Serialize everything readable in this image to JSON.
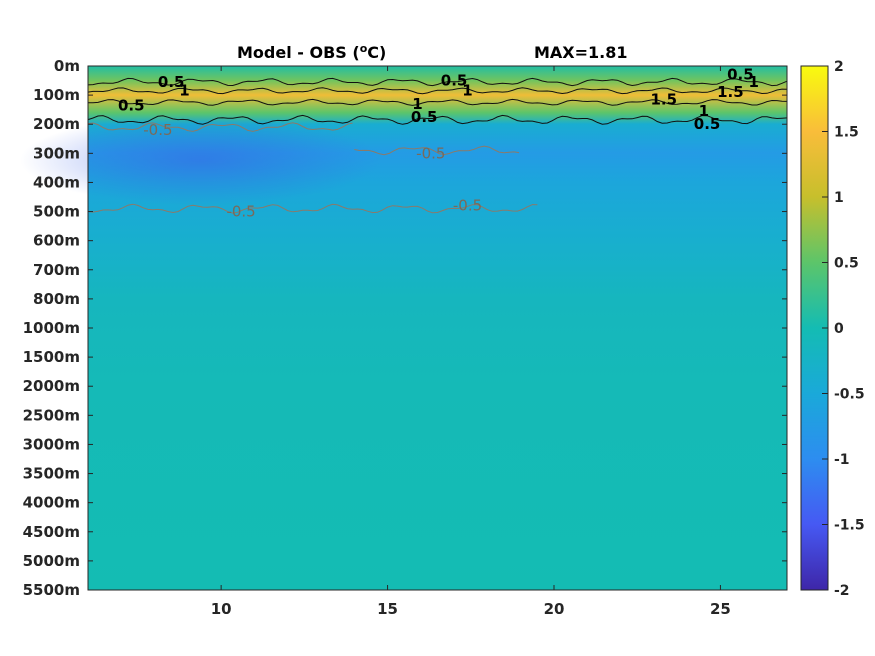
{
  "chart_data": {
    "type": "heatmap",
    "title_left": "Model - OBS (",
    "title_unit_sup": "o",
    "title_unit_tail": "C)",
    "title_right": "MAX=1.81",
    "xlabel": "",
    "ylabel": "",
    "x_range": [
      6,
      27
    ],
    "x_ticks": [
      10,
      15,
      20,
      25
    ],
    "y_tick_labels": [
      "0m",
      "100m",
      "200m",
      "300m",
      "400m",
      "500m",
      "600m",
      "700m",
      "800m",
      "1000m",
      "1500m",
      "2000m",
      "2500m",
      "3000m",
      "3500m",
      "4000m",
      "4500m",
      "5000m",
      "5500m"
    ],
    "colorbar": {
      "range": [
        -2,
        2
      ],
      "ticks": [
        "2",
        "1.5",
        "1",
        "0.5",
        "0",
        "-0.5",
        "-1",
        "-1.5",
        "-2"
      ]
    },
    "colors": {
      "deep_blue": "#3b5fe8",
      "mid_blue": "#2d93e0",
      "teal": "#14aec4",
      "green": "#a0c83a",
      "orange": "#f7ba3b",
      "yellow": "#f9fb0e",
      "navy": "#3e26a8"
    },
    "depth_profile": [
      {
        "level": 0,
        "value": 0.1
      },
      {
        "level": 0.5,
        "value": 0.6
      },
      {
        "level": 1,
        "value": 1.4
      },
      {
        "level": 1.6,
        "value": 0.5
      },
      {
        "level": 2,
        "value": -0.4
      },
      {
        "level": 3,
        "value": -0.75
      },
      {
        "level": 4,
        "value": -0.55
      },
      {
        "level": 6,
        "value": -0.35
      },
      {
        "level": 8,
        "value": -0.15
      },
      {
        "level": 11,
        "value": -0.05
      },
      {
        "level": 18,
        "value": 0.0
      }
    ],
    "contour_labels": [
      {
        "text": "0.5",
        "x": 8.5,
        "level": 0.55,
        "sign": "pos"
      },
      {
        "text": "1",
        "x": 8.9,
        "level": 0.85,
        "sign": "pos"
      },
      {
        "text": "0.5",
        "x": 7.3,
        "level": 1.35,
        "sign": "pos"
      },
      {
        "text": "0.5",
        "x": 17.0,
        "level": 0.5,
        "sign": "pos"
      },
      {
        "text": "1",
        "x": 17.4,
        "level": 0.85,
        "sign": "pos"
      },
      {
        "text": "1",
        "x": 15.9,
        "level": 1.3,
        "sign": "pos"
      },
      {
        "text": "0.5",
        "x": 16.1,
        "level": 1.75,
        "sign": "pos"
      },
      {
        "text": "0.5",
        "x": 25.6,
        "level": 0.3,
        "sign": "pos"
      },
      {
        "text": "1",
        "x": 26.0,
        "level": 0.55,
        "sign": "pos"
      },
      {
        "text": "1.5",
        "x": 25.3,
        "level": 0.9,
        "sign": "pos"
      },
      {
        "text": "1.5",
        "x": 23.3,
        "level": 1.15,
        "sign": "pos"
      },
      {
        "text": "1",
        "x": 24.5,
        "level": 1.55,
        "sign": "pos"
      },
      {
        "text": "0.5",
        "x": 24.6,
        "level": 2.0,
        "sign": "pos"
      },
      {
        "text": "-0.5",
        "x": 8.1,
        "level": 2.2,
        "sign": "neg"
      },
      {
        "text": "-0.5",
        "x": 16.3,
        "level": 3.0,
        "sign": "neg"
      },
      {
        "text": "-0.5",
        "x": 10.6,
        "level": 5.0,
        "sign": "neg"
      },
      {
        "text": "-0.5",
        "x": 17.4,
        "level": 4.8,
        "sign": "neg"
      }
    ]
  }
}
